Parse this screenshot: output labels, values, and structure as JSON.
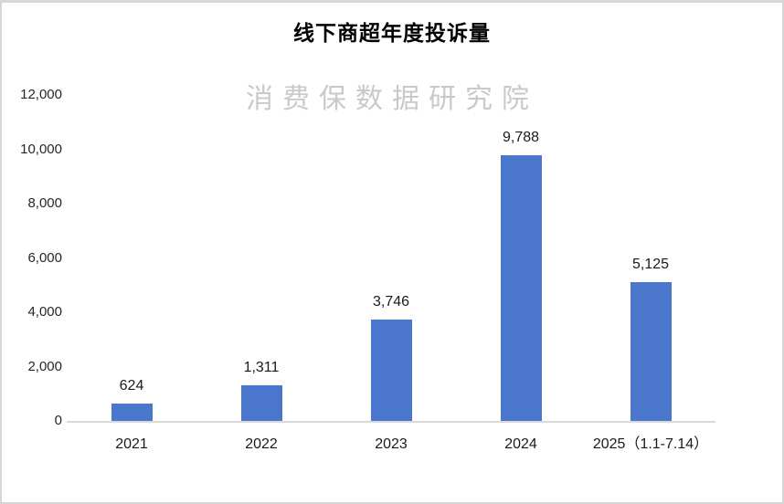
{
  "page": {
    "title": "线下商超年度投诉量",
    "watermark": "消费保数据研究院"
  },
  "colors": {
    "bar": "#4A76CC",
    "frame_border": "#D6D6D6",
    "axis_line": "#D9D9D9",
    "watermark": "#C9C9C9",
    "title_text": "#000000",
    "label_text": "#1A1A1A"
  },
  "chart_data": {
    "type": "bar",
    "title": "线下商超年度投诉量",
    "watermark": "消费保数据研究院",
    "categories": [
      "2021",
      "2022",
      "2023",
      "2024",
      "2025（1.1-7.14）"
    ],
    "values": [
      624,
      1311,
      3746,
      9788,
      5125
    ],
    "data_labels": [
      "624",
      "1,311",
      "3,746",
      "9,788",
      "5,125"
    ],
    "xlabel": "",
    "ylabel": "",
    "ylim": [
      0,
      12000
    ],
    "y_ticks": [
      {
        "value": 12000,
        "label": "12,000"
      },
      {
        "value": 10000,
        "label": "10,000"
      },
      {
        "value": 8000,
        "label": "8,000"
      },
      {
        "value": 6000,
        "label": "6,000"
      },
      {
        "value": 4000,
        "label": "4,000"
      },
      {
        "value": 2000,
        "label": "2,000"
      },
      {
        "value": 0,
        "label": "0"
      }
    ],
    "grid": false,
    "legend": false
  }
}
